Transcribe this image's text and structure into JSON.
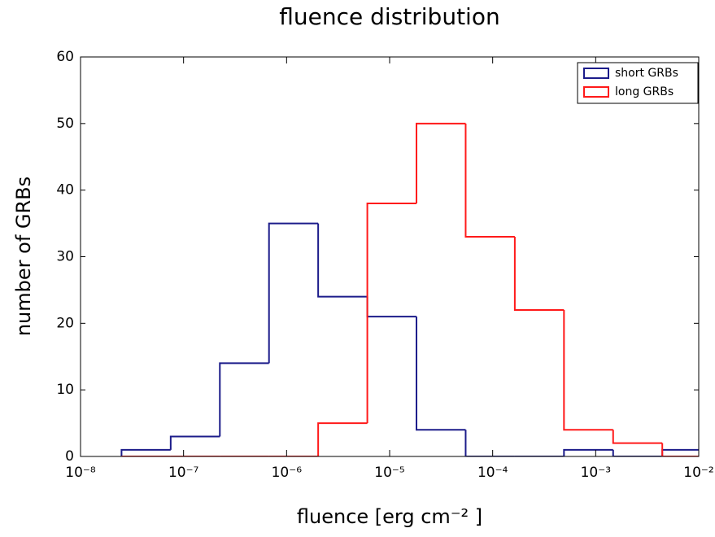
{
  "chart_data": {
    "type": "histogram",
    "title": "fluence distribution",
    "xlabel": "fluence [erg cm⁻² ]",
    "ylabel": "number of GRBs",
    "xscale": "log",
    "bins": [
      2.5e-08,
      7.5e-08,
      2.25e-07,
      6.75e-07,
      2.025e-06,
      6.075e-06,
      1.8225e-05,
      5.4675e-05,
      0.000164025,
      0.000492075,
      0.001476225,
      0.004428675,
      0.013286025
    ],
    "series": [
      {
        "name": "short GRBs",
        "color": "#1c1c8a",
        "values": [
          1,
          3,
          14,
          35,
          24,
          21,
          4,
          0,
          0,
          1,
          0,
          1
        ]
      },
      {
        "name": "long GRBs",
        "color": "#ff1a1a",
        "values": [
          0,
          0,
          0,
          0,
          5,
          38,
          50,
          33,
          22,
          4,
          2,
          0
        ]
      }
    ],
    "xlim": [
      1e-08,
      0.01
    ],
    "xticks": [
      {
        "value": 1e-08,
        "label": "10⁻⁸"
      },
      {
        "value": 1e-07,
        "label": "10⁻⁷"
      },
      {
        "value": 1e-06,
        "label": "10⁻⁶"
      },
      {
        "value": 1e-05,
        "label": "10⁻⁵"
      },
      {
        "value": 0.0001,
        "label": "10⁻⁴"
      },
      {
        "value": 0.001,
        "label": "10⁻³"
      },
      {
        "value": 0.01,
        "label": "10⁻²"
      }
    ],
    "ylim": [
      0,
      60
    ],
    "yticks": [
      0,
      10,
      20,
      30,
      40,
      50,
      60
    ],
    "legend": "upper right"
  }
}
